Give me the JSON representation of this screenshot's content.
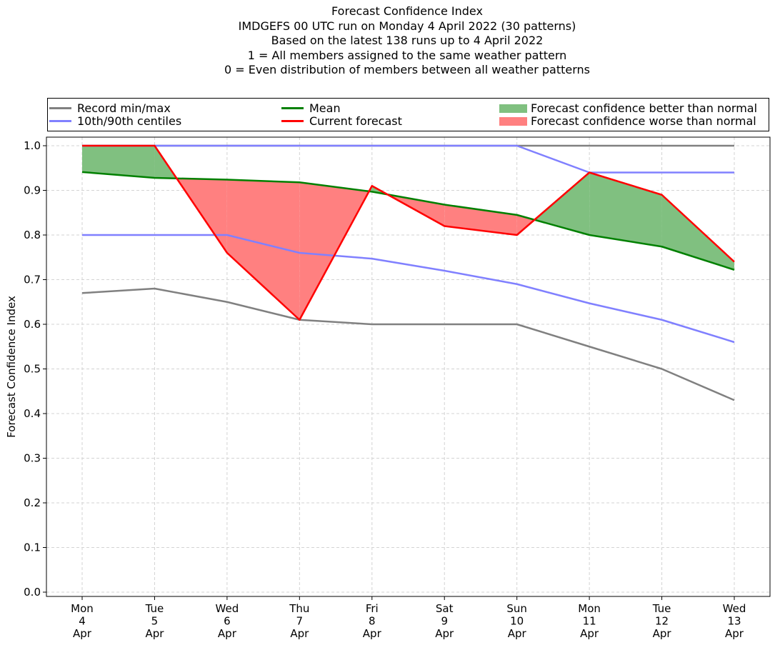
{
  "chart_data": {
    "type": "line",
    "title_lines": [
      "Forecast Confidence Index",
      "IMDGEFS 00 UTC run on Monday 4 April 2022 (30 patterns)",
      "Based on the latest 138 runs up to 4 April 2022",
      "1 = All members assigned to the same weather pattern",
      "0 = Even distribution of members between all weather patterns"
    ],
    "ylabel": "Forecast Confidence Index",
    "xlabel": "",
    "ylim": [
      0.0,
      1.0
    ],
    "y_ticks": [
      "0.0",
      "0.1",
      "0.2",
      "0.3",
      "0.4",
      "0.5",
      "0.6",
      "0.7",
      "0.8",
      "0.9",
      "1.0"
    ],
    "grid": true,
    "legend_placement": "top (above plot)",
    "categories": [
      [
        "Mon",
        "4",
        "Apr"
      ],
      [
        "Tue",
        "5",
        "Apr"
      ],
      [
        "Wed",
        "6",
        "Apr"
      ],
      [
        "Thu",
        "7",
        "Apr"
      ],
      [
        "Fri",
        "8",
        "Apr"
      ],
      [
        "Sat",
        "9",
        "Apr"
      ],
      [
        "Sun",
        "10",
        "Apr"
      ],
      [
        "Mon",
        "11",
        "Apr"
      ],
      [
        "Tue",
        "12",
        "Apr"
      ],
      [
        "Wed",
        "13",
        "Apr"
      ]
    ],
    "series": {
      "record_max": [
        1.0,
        1.0,
        1.0,
        1.0,
        1.0,
        1.0,
        1.0,
        1.0,
        1.0,
        1.0
      ],
      "record_min": [
        0.67,
        0.68,
        0.65,
        0.61,
        0.6,
        0.6,
        0.6,
        0.55,
        0.5,
        0.43
      ],
      "p90": [
        1.0,
        1.0,
        1.0,
        1.0,
        1.0,
        1.0,
        1.0,
        0.94,
        0.94,
        0.94
      ],
      "p10": [
        0.8,
        0.8,
        0.8,
        0.76,
        0.747,
        0.72,
        0.69,
        0.647,
        0.61,
        0.56
      ],
      "mean": [
        0.941,
        0.928,
        0.924,
        0.918,
        0.897,
        0.868,
        0.845,
        0.8,
        0.774,
        0.722
      ],
      "current": [
        1.0,
        1.0,
        0.76,
        0.61,
        0.91,
        0.82,
        0.8,
        0.94,
        0.89,
        0.74
      ]
    },
    "legend": {
      "record": "Record min/max",
      "centiles": "10th/90th centiles",
      "mean": "Mean",
      "current": "Current forecast",
      "better": "Forecast confidence better than normal",
      "worse": "Forecast confidence worse than normal"
    },
    "colors": {
      "record": "#808080",
      "centiles": "#8080ff",
      "mean": "#008000",
      "current": "#ff0000",
      "better": "#80c080",
      "worse": "#ff8080",
      "grid": "#d3d3d3"
    }
  }
}
